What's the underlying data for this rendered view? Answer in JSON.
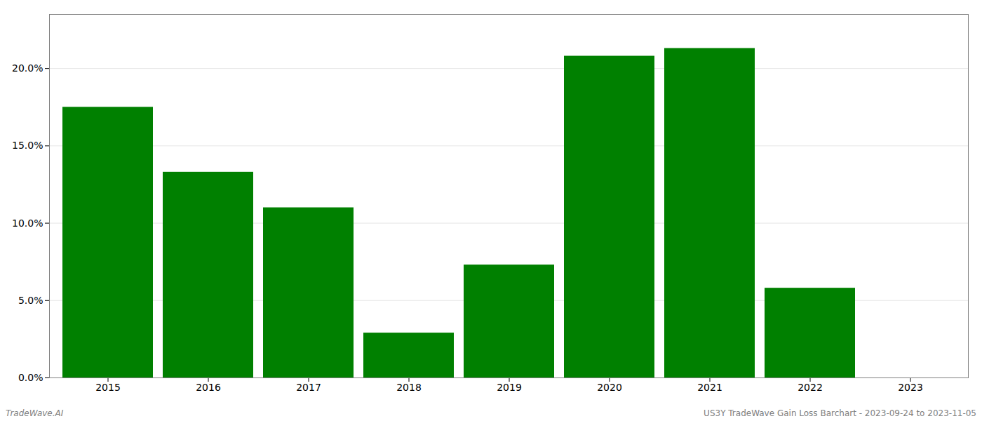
{
  "chart_data": {
    "type": "bar",
    "categories": [
      "2015",
      "2016",
      "2017",
      "2018",
      "2019",
      "2020",
      "2021",
      "2022",
      "2023"
    ],
    "values": [
      0.175,
      0.133,
      0.11,
      0.029,
      0.073,
      0.208,
      0.213,
      0.058,
      0.0
    ],
    "color": "#008000",
    "ylim": [
      0,
      0.235
    ],
    "yticks": [
      {
        "value": 0.0,
        "label": "0.0%"
      },
      {
        "value": 0.05,
        "label": "5.0%"
      },
      {
        "value": 0.1,
        "label": "10.0%"
      },
      {
        "value": 0.15,
        "label": "15.0%"
      },
      {
        "value": 0.2,
        "label": "20.0%"
      }
    ],
    "grid": true,
    "annotations": [
      "TradeWave.AI",
      "US3Y TradeWave Gain Loss Barchart - 2023-09-24 to 2023-11-05"
    ]
  }
}
